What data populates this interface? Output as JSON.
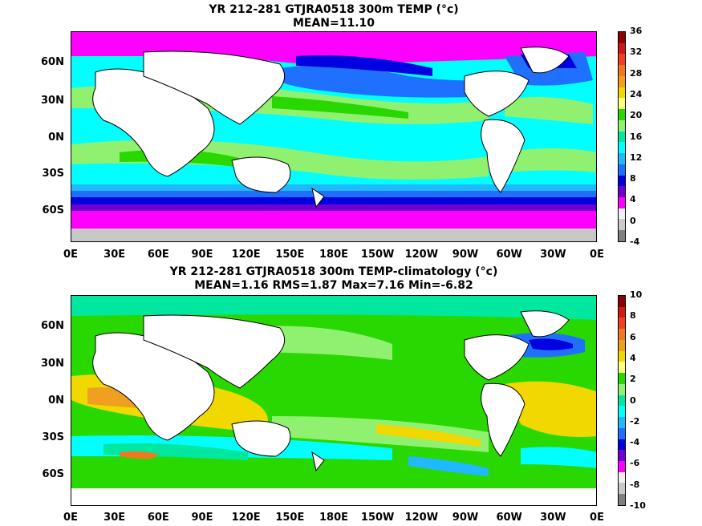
{
  "panels": [
    {
      "title_line1": "YR 212-281 GTJRA0518 300m TEMP (°c)",
      "title_line2": "MEAN=11.10",
      "colorbar_labels": [
        "36",
        "32",
        "28",
        "24",
        "20",
        "16",
        "12",
        "8",
        "4",
        "0",
        "-4"
      ],
      "colorbar_colors": [
        "#8b0000",
        "#d01818",
        "#f04020",
        "#f07820",
        "#f0a020",
        "#f0d800",
        "#ffff80",
        "#28d800",
        "#90f070",
        "#00e8a0",
        "#00ffff",
        "#20b8ff",
        "#2070ff",
        "#0000e0",
        "#7000d0",
        "#ff00ff",
        "#f0f0f0",
        "#c8c8c8",
        "#808080"
      ]
    },
    {
      "title_line1": "YR 212-281 GTJRA0518 300m TEMP-climatology (°c)",
      "title_line2": "MEAN=1.16   RMS=1.87   Max=7.16   Min=-6.82",
      "colorbar_labels": [
        "10",
        "8",
        "6",
        "4",
        "2",
        "0",
        "-2",
        "-4",
        "-6",
        "-8",
        "-10"
      ],
      "colorbar_colors": [
        "#8b0000",
        "#d01818",
        "#f04020",
        "#f07820",
        "#f0a020",
        "#f0d800",
        "#ffff80",
        "#28d800",
        "#90f070",
        "#00e8a0",
        "#00ffff",
        "#20b8ff",
        "#2070ff",
        "#0000e0",
        "#7000d0",
        "#ff00ff",
        "#f0f0f0",
        "#c8c8c8",
        "#808080"
      ]
    }
  ],
  "lat_labels": [
    "60N",
    "30N",
    "0N",
    "30S",
    "60S"
  ],
  "lon_labels": [
    "0E",
    "30E",
    "60E",
    "90E",
    "120E",
    "150E",
    "180E",
    "150W",
    "120W",
    "90W",
    "60W",
    "30W",
    "0E"
  ]
}
